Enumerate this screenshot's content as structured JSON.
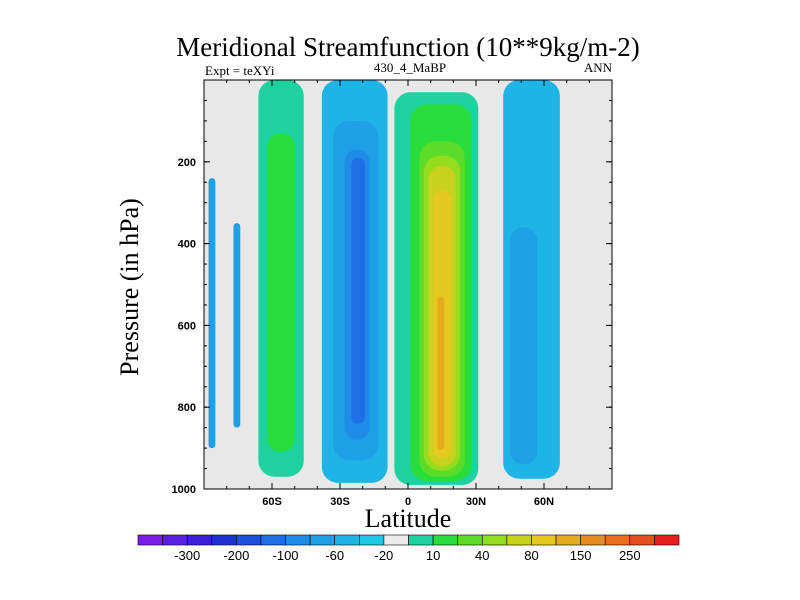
{
  "chart_data": {
    "type": "contour",
    "title": "Meridional Streamfunction (10**9kg/m-2)",
    "left_label": "Expt = teXYi",
    "center_label": "430_4_MaBP",
    "right_label": "ANN",
    "xlabel": "Latitude",
    "ylabel": "Pressure (in hPa)",
    "xlim": [
      -90,
      90
    ],
    "ylim": [
      1000,
      0
    ],
    "y_reversed": true,
    "xticks": [
      {
        "value": -60,
        "label": "60S"
      },
      {
        "value": -30,
        "label": "30S"
      },
      {
        "value": 0,
        "label": "0"
      },
      {
        "value": 30,
        "label": "30N"
      },
      {
        "value": 60,
        "label": "60N"
      }
    ],
    "yticks": [
      200,
      400,
      600,
      800,
      1000
    ],
    "background_color": "#e8e8e8",
    "colorbar": {
      "colors": [
        "#7a1ee6",
        "#5a1ee6",
        "#3c1edc",
        "#1e32d2",
        "#1e50dc",
        "#1e6ee6",
        "#1e8ce6",
        "#1ea0e6",
        "#1eb4e6",
        "#1ec8e6",
        "#ececec",
        "#1ed2a0",
        "#28dc3c",
        "#5adc28",
        "#96dc1e",
        "#c8d21e",
        "#e6c81e",
        "#e6aa1e",
        "#e68c1e",
        "#e66e1e",
        "#e6501e",
        "#e61e1e"
      ],
      "labels": [
        "-300",
        "-200",
        "-100",
        "-60",
        "-20",
        "10",
        "40",
        "80",
        "150",
        "250"
      ],
      "label_boundaries": [
        2,
        4,
        6,
        8,
        10,
        12,
        14,
        16,
        18,
        20
      ]
    },
    "cells": [
      {
        "level": 7,
        "lat": [
          -88,
          -85
        ],
        "p": [
          240,
          900
        ]
      },
      {
        "level": 7,
        "lat": [
          -77,
          -74
        ],
        "p": [
          350,
          850
        ]
      },
      {
        "level": 11,
        "lat": [
          -66,
          -46
        ],
        "p": [
          0,
          970
        ]
      },
      {
        "level": 12,
        "lat": [
          -62,
          -50
        ],
        "p": [
          130,
          910
        ]
      },
      {
        "level": 8,
        "lat": [
          -38,
          -9
        ],
        "p": [
          0,
          985
        ]
      },
      {
        "level": 7,
        "lat": [
          -33,
          -13
        ],
        "p": [
          100,
          930
        ]
      },
      {
        "level": 6,
        "lat": [
          -28,
          -17
        ],
        "p": [
          170,
          880
        ]
      },
      {
        "level": 5,
        "lat": [
          -25,
          -19
        ],
        "p": [
          190,
          840
        ]
      },
      {
        "level": 11,
        "lat": [
          -6,
          31
        ],
        "p": [
          30,
          990
        ]
      },
      {
        "level": 12,
        "lat": [
          1,
          28
        ],
        "p": [
          60,
          980
        ]
      },
      {
        "level": 13,
        "lat": [
          5,
          25
        ],
        "p": [
          150,
          970
        ]
      },
      {
        "level": 14,
        "lat": [
          7,
          23
        ],
        "p": [
          185,
          955
        ]
      },
      {
        "level": 15,
        "lat": [
          9,
          21
        ],
        "p": [
          210,
          945
        ]
      },
      {
        "level": 16,
        "lat": [
          11,
          19
        ],
        "p": [
          270,
          925
        ]
      },
      {
        "level": 17,
        "lat": [
          13,
          16
        ],
        "p": [
          530,
          905
        ]
      },
      {
        "level": 8,
        "lat": [
          42,
          67
        ],
        "p": [
          0,
          975
        ]
      },
      {
        "level": 7,
        "lat": [
          45,
          57
        ],
        "p": [
          360,
          940
        ]
      }
    ]
  }
}
